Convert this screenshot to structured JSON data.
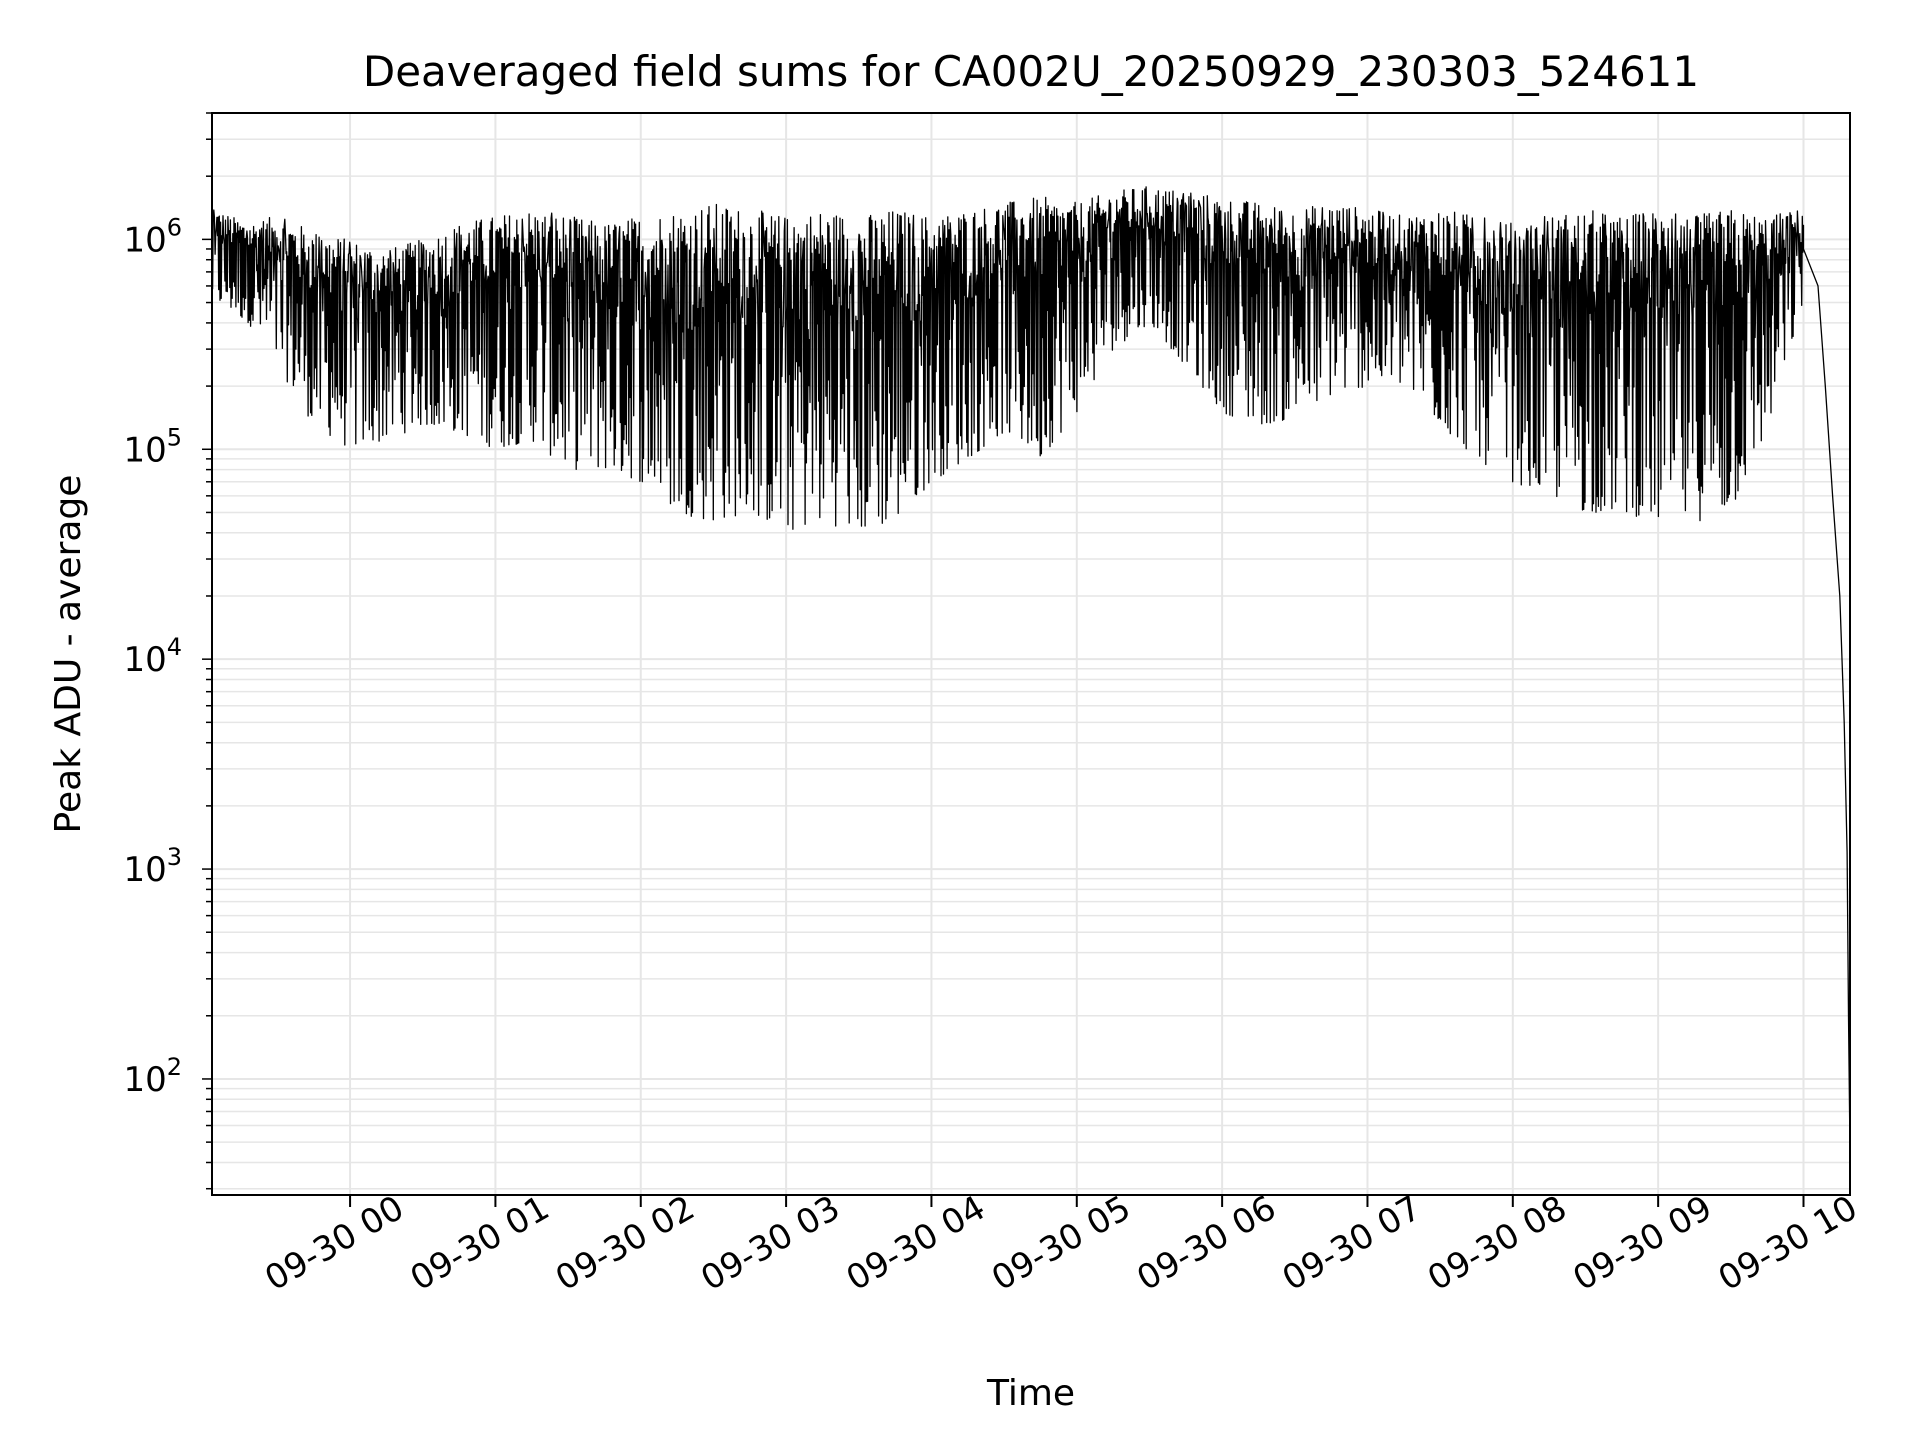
{
  "chart_data": {
    "type": "line",
    "title": "Deaveraged field sums for CA002U_20250929_230303_524611",
    "xlabel": "Time",
    "ylabel": "Peak ADU - average",
    "yscale": "log",
    "ylim": [
      28,
      4000000
    ],
    "xlim_hours": [
      -0.95,
      10.32
    ],
    "grid": true,
    "line_color": "#000000",
    "grid_color": "#e6e6e6",
    "x_ticks": [
      {
        "label": "09-30 00",
        "hour": 0
      },
      {
        "label": "09-30 01",
        "hour": 1
      },
      {
        "label": "09-30 02",
        "hour": 2
      },
      {
        "label": "09-30 03",
        "hour": 3
      },
      {
        "label": "09-30 04",
        "hour": 4
      },
      {
        "label": "09-30 05",
        "hour": 5
      },
      {
        "label": "09-30 06",
        "hour": 6
      },
      {
        "label": "09-30 07",
        "hour": 7
      },
      {
        "label": "09-30 08",
        "hour": 8
      },
      {
        "label": "09-30 09",
        "hour": 9
      },
      {
        "label": "09-30 10",
        "hour": 10
      }
    ],
    "y_ticks": [
      {
        "base": "10",
        "exp": "2",
        "value": 100
      },
      {
        "base": "10",
        "exp": "3",
        "value": 1000
      },
      {
        "base": "10",
        "exp": "4",
        "value": 10000
      },
      {
        "base": "10",
        "exp": "5",
        "value": 100000
      },
      {
        "base": "10",
        "exp": "6",
        "value": 1000000
      }
    ],
    "series": [
      {
        "name": "field sums",
        "envelope": {
          "hours": [
            -0.95,
            -0.7,
            -0.5,
            -0.25,
            0.0,
            0.25,
            0.5,
            0.75,
            1.0,
            1.25,
            1.5,
            1.75,
            2.0,
            2.25,
            2.5,
            2.75,
            3.0,
            3.25,
            3.5,
            3.75,
            4.0,
            4.25,
            4.5,
            4.75,
            5.0,
            5.25,
            5.5,
            5.75,
            6.0,
            6.25,
            6.5,
            6.75,
            7.0,
            7.25,
            7.5,
            7.75,
            8.0,
            8.25,
            8.5,
            8.75,
            9.0,
            9.25,
            9.5,
            9.75,
            10.0
          ],
          "high": [
            1400000,
            1200000,
            1300000,
            1100000,
            1000000,
            900000,
            1000000,
            1200000,
            1300000,
            1400000,
            1300000,
            1200000,
            1300000,
            1400000,
            1500000,
            1400000,
            1300000,
            1400000,
            1300000,
            1400000,
            1300000,
            1400000,
            1500000,
            1600000,
            1500000,
            1700000,
            1800000,
            1700000,
            1600000,
            1500000,
            1400000,
            1500000,
            1400000,
            1300000,
            1400000,
            1300000,
            1200000,
            1300000,
            1400000,
            1300000,
            1400000,
            1300000,
            1400000,
            1300000,
            1400000
          ],
          "low": [
            500000,
            400000,
            250000,
            130000,
            100000,
            110000,
            130000,
            120000,
            100000,
            110000,
            80000,
            80000,
            70000,
            50000,
            45000,
            50000,
            40000,
            45000,
            40000,
            45000,
            70000,
            90000,
            120000,
            90000,
            150000,
            300000,
            400000,
            250000,
            150000,
            130000,
            140000,
            180000,
            200000,
            200000,
            130000,
            90000,
            70000,
            60000,
            50000,
            50000,
            45000,
            45000,
            50000,
            120000,
            500000
          ],
          "tail": {
            "hours": [
              10.0,
              10.1,
              10.15,
              10.2,
              10.25,
              10.28,
              10.3,
              10.31,
              10.32
            ],
            "values": [
              900000,
              600000,
              200000,
              60000,
              20000,
              5000,
              1200,
              200,
              45
            ]
          }
        }
      }
    ]
  }
}
